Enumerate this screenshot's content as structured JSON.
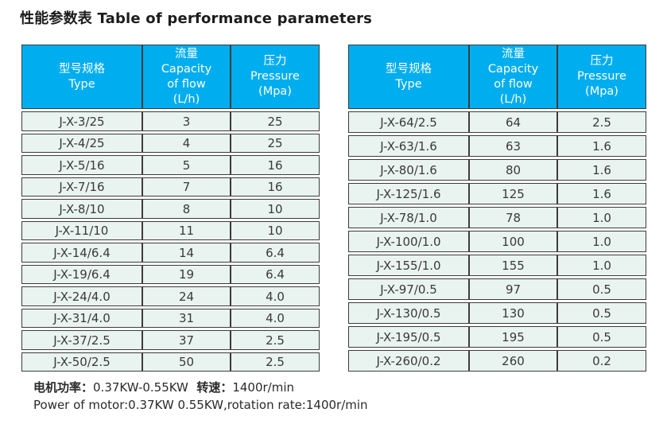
{
  "title": "性能参数表 Table of performance parameters",
  "colors": {
    "header_bg": "#00ADEE",
    "header_text": "#FFFFFF",
    "row_bg": "#E9F3EF",
    "border": "#3C3C3C",
    "text": "#3A3A3A",
    "title_text": "#1C1C1C"
  },
  "header_columns": [
    {
      "lines": [
        "型号规格",
        "Type"
      ]
    },
    {
      "lines": [
        "流量",
        "Capacity",
        "of flow",
        "(L/h)"
      ]
    },
    {
      "lines": [
        "压力",
        "Pressure",
        "(Mpa)"
      ]
    }
  ],
  "left_table": {
    "rows": [
      {
        "type": "J-X-3/25",
        "flow": "3",
        "pressure": "25"
      },
      {
        "type": "J-X-4/25",
        "flow": "4",
        "pressure": "25"
      },
      {
        "type": "J-X-5/16",
        "flow": "5",
        "pressure": "16"
      },
      {
        "type": "J-X-7/16",
        "flow": "7",
        "pressure": "16"
      },
      {
        "type": "J-X-8/10",
        "flow": "8",
        "pressure": "10"
      },
      {
        "type": "J-X-11/10",
        "flow": "11",
        "pressure": "10"
      },
      {
        "type": "J-X-14/6.4",
        "flow": "14",
        "pressure": "6.4"
      },
      {
        "type": "J-X-19/6.4",
        "flow": "19",
        "pressure": "6.4"
      },
      {
        "type": "J-X-24/4.0",
        "flow": "24",
        "pressure": "4.0"
      },
      {
        "type": "J-X-31/4.0",
        "flow": "31",
        "pressure": "4.0"
      },
      {
        "type": "J-X-37/2.5",
        "flow": "37",
        "pressure": "2.5"
      },
      {
        "type": "J-X-50/2.5",
        "flow": "50",
        "pressure": "2.5"
      }
    ]
  },
  "right_table": {
    "rows": [
      {
        "type": "J-X-64/2.5",
        "flow": "64",
        "pressure": "2.5"
      },
      {
        "type": "J-X-63/1.6",
        "flow": "63",
        "pressure": "1.6"
      },
      {
        "type": "J-X-80/1.6",
        "flow": "80",
        "pressure": "1.6"
      },
      {
        "type": "J-X-125/1.6",
        "flow": "125",
        "pressure": "1.6"
      },
      {
        "type": "J-X-78/1.0",
        "flow": "78",
        "pressure": "1.0"
      },
      {
        "type": "J-X-100/1.0",
        "flow": "100",
        "pressure": "1.0"
      },
      {
        "type": "J-X-155/1.0",
        "flow": "155",
        "pressure": "1.0"
      },
      {
        "type": "J-X-97/0.5",
        "flow": "97",
        "pressure": "0.5"
      },
      {
        "type": "J-X-130/0.5",
        "flow": "130",
        "pressure": "0.5"
      },
      {
        "type": "J-X-195/0.5",
        "flow": "195",
        "pressure": "0.5"
      },
      {
        "type": "J-X-260/0.2",
        "flow": "260",
        "pressure": "0.2"
      }
    ]
  },
  "footer": {
    "motor_power_label": "电机功率：",
    "motor_power_value": "0.37KW-0.55KW",
    "rotation_label": "  转速：",
    "rotation_value": "1400r/min",
    "english_line": "Power of motor:0.37KW 0.55KW,rotation rate:1400r/min"
  }
}
